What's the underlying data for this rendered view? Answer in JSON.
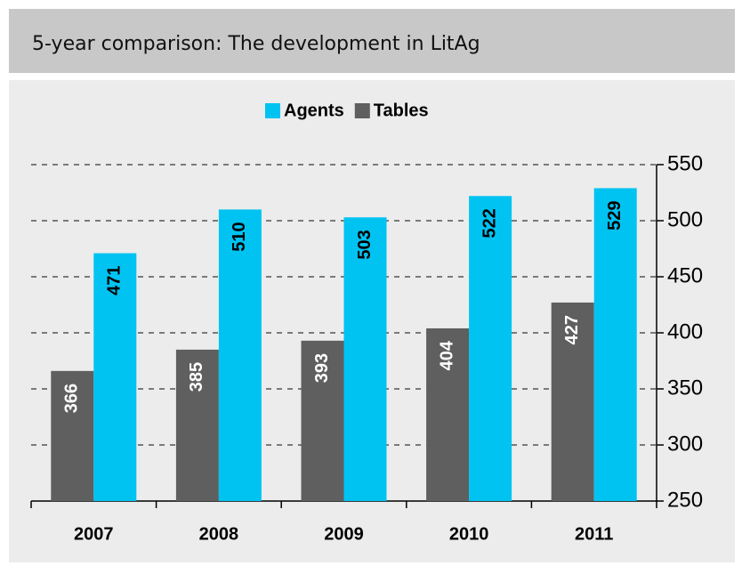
{
  "chart_data": {
    "type": "bar",
    "title": "5-year comparison: The development in LitAg",
    "categories": [
      "2007",
      "2008",
      "2009",
      "2010",
      "2011"
    ],
    "series": [
      {
        "name": "Tables",
        "color": "#5f5f5f",
        "values": [
          366,
          385,
          393,
          404,
          427
        ]
      },
      {
        "name": "Agents",
        "color": "#00c3f2",
        "values": [
          471,
          510,
          503,
          522,
          529
        ]
      }
    ],
    "legend_order": [
      "Agents",
      "Tables"
    ],
    "ylim": [
      250,
      550
    ],
    "yticks": [
      250,
      300,
      350,
      400,
      450,
      500,
      550
    ],
    "grid": true
  }
}
